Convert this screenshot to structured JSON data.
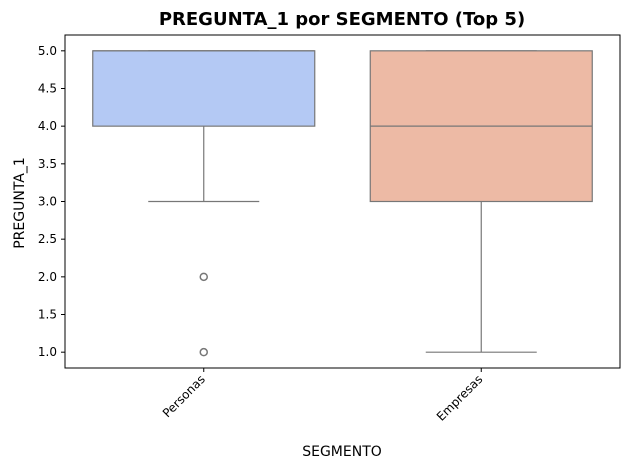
{
  "chart_data": {
    "type": "box",
    "title": "PREGUNTA_1 por SEGMENTO (Top 5)",
    "xlabel": "SEGMENTO",
    "ylabel": "PREGUNTA_1",
    "ylim": [
      0.79,
      5.21
    ],
    "y_ticks": [
      "1.0",
      "1.5",
      "2.0",
      "2.5",
      "3.0",
      "3.5",
      "4.0",
      "4.5",
      "5.0"
    ],
    "y_tick_values": [
      1.0,
      1.5,
      2.0,
      2.5,
      3.0,
      3.5,
      4.0,
      4.5,
      5.0
    ],
    "grid": false,
    "categories": [
      "Personas",
      "Empresas"
    ],
    "boxes": [
      {
        "category": "Personas",
        "whisker_low": 3.0,
        "q1": 4.0,
        "median": 5.0,
        "q3": 5.0,
        "whisker_high": 5.0,
        "outliers": [
          1.0,
          2.0
        ],
        "color": "#b4c9f4"
      },
      {
        "category": "Empresas",
        "whisker_low": 1.0,
        "q1": 3.0,
        "median": 4.0,
        "q3": 5.0,
        "whisker_high": 5.0,
        "outliers": [],
        "color": "#edbaa5"
      }
    ],
    "line_color": "#777777"
  }
}
